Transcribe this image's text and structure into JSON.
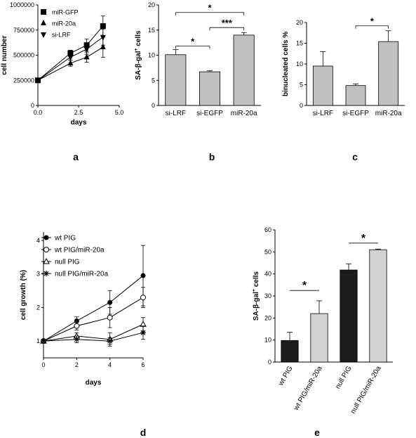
{
  "panels": {
    "a": "a",
    "b": "b",
    "c": "c",
    "d": "d",
    "e": "e"
  },
  "chart_data": [
    {
      "id": "a",
      "type": "line",
      "xlabel": "days",
      "ylabel": "cell number",
      "xlim": [
        0,
        5
      ],
      "ylim": [
        0,
        1000000
      ],
      "xticks": [
        "0.0",
        "2.5",
        "5.0"
      ],
      "yticks": [
        "0",
        "250000",
        "500000",
        "750000",
        "1000000"
      ],
      "legend_position": "top-left",
      "series": [
        {
          "name": "miR-GFP",
          "marker": "square",
          "x": [
            0,
            2,
            3,
            4
          ],
          "y": [
            250000,
            520000,
            600000,
            790000
          ],
          "err": [
            0,
            30000,
            60000,
            100000
          ]
        },
        {
          "name": "miR-20a",
          "marker": "triangle-up",
          "x": [
            0,
            2,
            3,
            4
          ],
          "y": [
            250000,
            420000,
            480000,
            580000
          ],
          "err": [
            0,
            30000,
            50000,
            100000
          ]
        },
        {
          "name": "si-LRF",
          "marker": "triangle-down",
          "x": [
            0,
            2,
            3,
            4
          ],
          "y": [
            250000,
            480000,
            560000,
            680000
          ],
          "err": [
            0,
            30000,
            50000,
            80000
          ]
        }
      ]
    },
    {
      "id": "b",
      "type": "bar",
      "ylabel": "SA-β-gal + cells",
      "ylim": [
        0,
        20
      ],
      "yticks": [
        "0",
        "5",
        "10",
        "15",
        "20"
      ],
      "categories": [
        "si-LRF",
        "si-EGFP",
        "miR-20a"
      ],
      "values": [
        10.1,
        6.7,
        14.0
      ],
      "err": [
        1.0,
        0.2,
        0.5
      ],
      "bar_color": "#c0c0c0",
      "significance": [
        {
          "from": 0,
          "to": 1,
          "y": 11.8,
          "label": "*"
        },
        {
          "from": 1,
          "to": 2,
          "y": 15.5,
          "label": "***"
        },
        {
          "from": 0,
          "to": 2,
          "y": 18.5,
          "label": "*"
        }
      ]
    },
    {
      "id": "c",
      "type": "bar",
      "ylabel": "binucleated cells %",
      "ylim": [
        0,
        20
      ],
      "yticks": [
        "0",
        "5",
        "10",
        "15",
        "20"
      ],
      "categories": [
        "si-LRF",
        "si-EGFP",
        "miR-20a"
      ],
      "values": [
        9.5,
        4.8,
        15.4
      ],
      "err": [
        3.5,
        0.4,
        2.6
      ],
      "bar_color": "#c0c0c0",
      "significance": [
        {
          "from": 1,
          "to": 2,
          "y": 19.2,
          "label": "*"
        }
      ]
    },
    {
      "id": "d",
      "type": "line",
      "xlabel": "days",
      "ylabel": "cell growth (%)",
      "xlim": [
        0,
        6
      ],
      "ylim": [
        0.5,
        4.25
      ],
      "xticks": [
        "0",
        "2",
        "4",
        "6"
      ],
      "yticks": [
        "1",
        "2",
        "3",
        "4"
      ],
      "legend_position": "top-left",
      "series": [
        {
          "name": "wt PIG",
          "marker": "filled-circle",
          "x": [
            0,
            2,
            4,
            6
          ],
          "y": [
            1.0,
            1.6,
            2.15,
            2.95
          ],
          "err": [
            0.05,
            0.12,
            0.35,
            0.9
          ]
        },
        {
          "name": "wt PIG/miR-20a",
          "marker": "open-circle",
          "x": [
            0,
            2,
            4,
            6
          ],
          "y": [
            1.0,
            1.45,
            1.7,
            2.3
          ],
          "err": [
            0.05,
            0.12,
            0.3,
            0.3
          ]
        },
        {
          "name": "null PIG",
          "marker": "open-triangle",
          "x": [
            0,
            2,
            4,
            6
          ],
          "y": [
            1.0,
            1.15,
            1.05,
            1.5
          ],
          "err": [
            0.05,
            0.1,
            0.2,
            0.2
          ]
        },
        {
          "name": "null PIG/miR-20a",
          "marker": "asterisk",
          "x": [
            0,
            2,
            4,
            6
          ],
          "y": [
            1.0,
            1.05,
            1.0,
            1.25
          ],
          "err": [
            0.05,
            0.1,
            0.1,
            0.2
          ]
        }
      ]
    },
    {
      "id": "e",
      "type": "bar",
      "ylabel": "SA-β-gal + cells",
      "ylim": [
        0,
        60
      ],
      "yticks": [
        "0",
        "10",
        "20",
        "30",
        "40",
        "50",
        "60"
      ],
      "categories": [
        "wt PIG",
        "wt PIG/miR-20a",
        "null PIG",
        "null PIG/miR-20a"
      ],
      "values": [
        9.8,
        22.0,
        41.8,
        51.0
      ],
      "err": [
        3.8,
        5.8,
        2.8,
        0.3
      ],
      "bar_colors": [
        "#1c1c1c",
        "#d2d2d2",
        "#1c1c1c",
        "#d2d2d2"
      ],
      "significance": [
        {
          "from": 0,
          "to": 1,
          "y": 32.5,
          "label": "*"
        },
        {
          "from": 2,
          "to": 3,
          "y": 54.0,
          "label": "*"
        }
      ]
    }
  ]
}
